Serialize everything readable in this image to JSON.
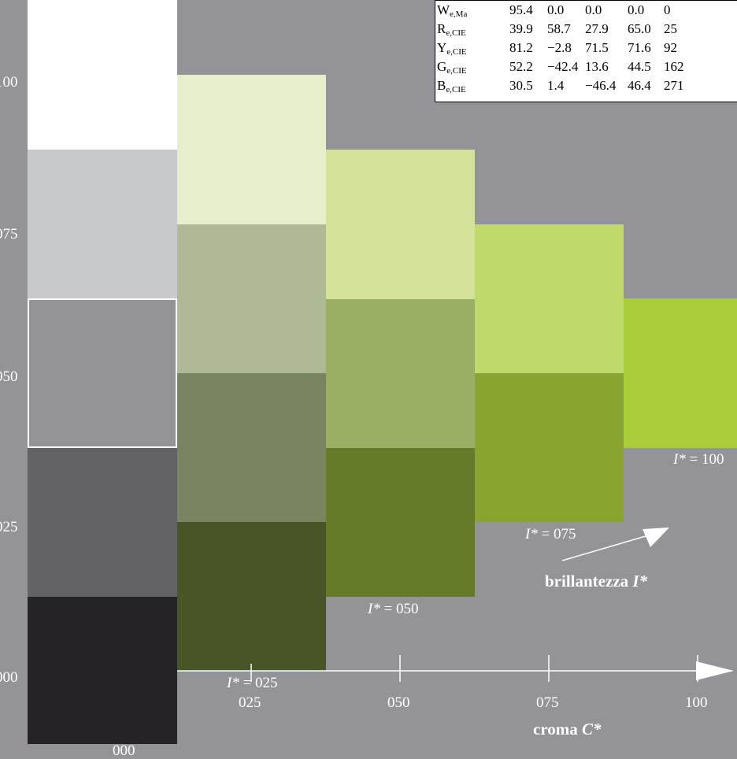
{
  "table": {
    "rows": [
      {
        "symbol": "W",
        "sub": "e,Ma",
        "values": [
          "95.4",
          "0.0",
          "0.0",
          "0.0",
          "0"
        ]
      },
      {
        "symbol": "R",
        "sub": "e,CIE",
        "values": [
          "39.9",
          "58.7",
          "27.9",
          "65.0",
          "25"
        ]
      },
      {
        "symbol": "Y",
        "sub": "e,CIE",
        "values": [
          "81.2",
          "−2.8",
          "71.5",
          "71.6",
          "92"
        ]
      },
      {
        "symbol": "G",
        "sub": "e,CIE",
        "values": [
          "52.2",
          "−42.4",
          "13.6",
          "44.5",
          "162"
        ]
      },
      {
        "symbol": "B",
        "sub": "e,CIE",
        "values": [
          "30.5",
          "1.4",
          "−46.4",
          "46.4",
          "271"
        ]
      }
    ]
  },
  "y_axis": {
    "ticks": [
      "100",
      "075",
      "050",
      "025",
      "000"
    ]
  },
  "x_axis": {
    "ticks": [
      "025",
      "050",
      "075",
      "100"
    ],
    "label_word": "croma",
    "label_symbol": "C*"
  },
  "brilliance": {
    "label_word": "brillantezza",
    "label_symbol": "I*",
    "levels": [
      {
        "prefix": "I*",
        "text": " = 025"
      },
      {
        "prefix": "I*",
        "text": " = 050"
      },
      {
        "prefix": "I*",
        "text": " = 075"
      },
      {
        "prefix": "I*",
        "text": " = 100"
      }
    ]
  },
  "bottom_partial_text": "000",
  "colors": {
    "background": "#939398",
    "white": "#ffffff",
    "achromatic": [
      "#ffffff",
      "#c8c9cd",
      "#939398",
      "#636365",
      "#252325"
    ],
    "column_1": [
      "#e6eecb",
      "#afb995",
      "#798460",
      "#485527"
    ],
    "column_2": [
      "#d3e298",
      "#9aae64",
      "#657b28"
    ],
    "column_3": [
      "#bfd96b",
      "#89a431"
    ],
    "column_4": [
      "#a8cd38"
    ]
  },
  "chart_data": {
    "type": "grid",
    "xlabel": "croma C*",
    "achromatic_column": [
      "#ffffff",
      "#c8c9cd",
      "#939398",
      "#636365",
      "#252325"
    ],
    "chromatic_columns": [
      [
        "#e6eecb",
        "#afb995",
        "#798460",
        "#485527"
      ],
      [
        "#d3e298",
        "#9aae64",
        "#657b28"
      ],
      [
        "#bfd96b",
        "#89a431"
      ],
      [
        "#a8cd38"
      ]
    ]
  }
}
